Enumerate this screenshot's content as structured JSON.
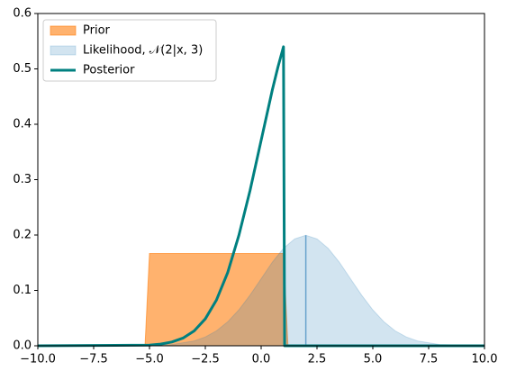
{
  "chart_data": {
    "type": "area_line",
    "xlim": [
      -10,
      10
    ],
    "ylim": [
      0,
      0.6
    ],
    "xticks": [
      {
        "value": -10,
        "label": "−10.0"
      },
      {
        "value": -7.5,
        "label": "−7.5"
      },
      {
        "value": -5,
        "label": "−5.0"
      },
      {
        "value": -2.5,
        "label": "−2.5"
      },
      {
        "value": 0,
        "label": "0.0"
      },
      {
        "value": 2.5,
        "label": "2.5"
      },
      {
        "value": 5,
        "label": "5.0"
      },
      {
        "value": 7.5,
        "label": "7.5"
      },
      {
        "value": 10,
        "label": "10.0"
      }
    ],
    "yticks": [
      {
        "value": 0,
        "label": "0.0"
      },
      0.1,
      0.2,
      0.3,
      0.4,
      0.5,
      0.6
    ],
    "legend": "upper left",
    "series": [
      {
        "name": "Prior",
        "kind": "area",
        "color": "#ff7f0e",
        "opacity": 0.6,
        "x": [
          -10,
          -5.2,
          -5,
          1,
          1.2,
          10
        ],
        "values": [
          0,
          0,
          0.1667,
          0.1667,
          0,
          0
        ]
      },
      {
        "name": "Likelihood, 𝒩(2|x, 3)",
        "kind": "area",
        "color": "#1f77b4",
        "opacity": 0.2,
        "x": [
          -10,
          -4,
          -3,
          -2.5,
          -2,
          -1.5,
          -1,
          -0.5,
          0,
          0.5,
          1,
          1.5,
          2,
          2.5,
          3,
          3.5,
          4,
          4.5,
          5,
          5.5,
          6,
          6.5,
          7,
          8,
          10
        ],
        "values": [
          0,
          0.0022,
          0.0088,
          0.0159,
          0.027,
          0.0432,
          0.0648,
          0.0914,
          0.121,
          0.151,
          0.176,
          0.193,
          0.1995,
          0.193,
          0.176,
          0.151,
          0.121,
          0.0914,
          0.0648,
          0.0432,
          0.027,
          0.0159,
          0.0088,
          0.0022,
          0
        ],
        "marker": {
          "x": 2,
          "value": 0.1995
        }
      },
      {
        "name": "Posterior",
        "kind": "line",
        "color": "#008080",
        "x": [
          -10,
          -5,
          -4.5,
          -4,
          -3.5,
          -3,
          -2.5,
          -2,
          -1.5,
          -1,
          -0.5,
          0,
          0.5,
          0.75,
          1,
          1.05,
          10
        ],
        "values": [
          0,
          0.0013,
          0.0031,
          0.0068,
          0.0139,
          0.0269,
          0.0487,
          0.0828,
          0.132,
          0.199,
          0.28,
          0.371,
          0.462,
          0.503,
          0.54,
          0,
          0
        ]
      }
    ]
  }
}
